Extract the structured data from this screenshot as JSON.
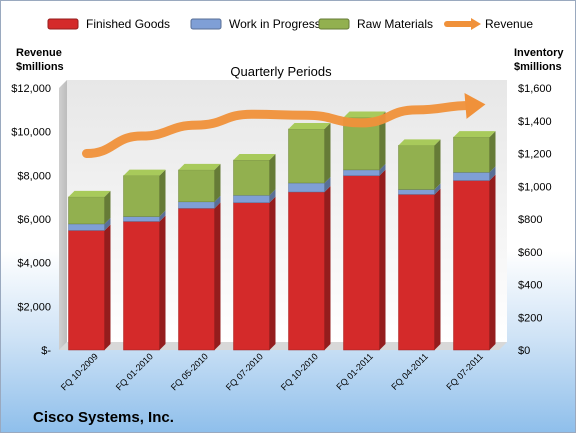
{
  "chart_data": {
    "type": "bar",
    "stacked": true,
    "title": "Quarterly Periods",
    "company": "Cisco Systems, Inc.",
    "categories": [
      "FQ 10-2009",
      "FQ 01-2010",
      "FQ 05-2010",
      "FQ 07-2010",
      "FQ 10-2010",
      "FQ 01-2011",
      "FQ 04-2011",
      "FQ 07-2011"
    ],
    "series": [
      {
        "name": "Finished Goods",
        "axis": "right",
        "color": "#d42a2a",
        "values": [
          730,
          785,
          865,
          900,
          965,
          1065,
          950,
          1035
        ]
      },
      {
        "name": "Work in Progress",
        "axis": "right",
        "color": "#7f9fd6",
        "values": [
          40,
          30,
          40,
          45,
          55,
          35,
          30,
          50
        ]
      },
      {
        "name": "Raw Materials",
        "axis": "right",
        "color": "#92b04f",
        "values": [
          165,
          250,
          195,
          215,
          330,
          320,
          270,
          215
        ]
      },
      {
        "name": "Revenue",
        "type": "line",
        "axis": "left",
        "color": "#f0913a",
        "values": [
          9000,
          9800,
          10300,
          10800,
          10750,
          10400,
          11000,
          11200
        ]
      }
    ],
    "left_axis": {
      "title_lines": [
        "Revenue",
        "$millions"
      ],
      "ylim": [
        0,
        12000
      ],
      "ticks": [
        "$-",
        "$2,000",
        "$4,000",
        "$6,000",
        "$8,000",
        "$10,000",
        "$12,000"
      ]
    },
    "right_axis": {
      "title_lines": [
        "Inventory",
        "$millions"
      ],
      "ylim": [
        0,
        1600
      ],
      "ticks": [
        "$0",
        "$200",
        "$400",
        "$600",
        "$800",
        "$1,000",
        "$1,200",
        "$1,400",
        "$1,600"
      ]
    },
    "legend_position": "top",
    "grid": false
  }
}
